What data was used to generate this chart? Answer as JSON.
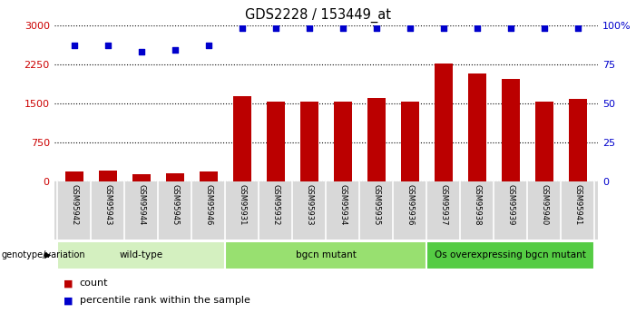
{
  "title": "GDS2228 / 153449_at",
  "samples": [
    "GSM95942",
    "GSM95943",
    "GSM95944",
    "GSM95945",
    "GSM95946",
    "GSM95931",
    "GSM95932",
    "GSM95933",
    "GSM95934",
    "GSM95935",
    "GSM95936",
    "GSM95937",
    "GSM95938",
    "GSM95939",
    "GSM95940",
    "GSM95941"
  ],
  "counts": [
    200,
    210,
    140,
    165,
    200,
    1630,
    1530,
    1530,
    1530,
    1595,
    1530,
    2270,
    2080,
    1960,
    1530,
    1590
  ],
  "percentile_ranks": [
    87,
    87,
    83,
    84,
    87,
    98,
    98,
    98,
    98,
    98,
    98,
    98,
    98,
    98,
    98,
    98
  ],
  "groups": [
    {
      "label": "wild-type",
      "start": 0,
      "end": 5,
      "color": "#d4f0c0"
    },
    {
      "label": "bgcn mutant",
      "start": 5,
      "end": 11,
      "color": "#98e070"
    },
    {
      "label": "Os overexpressing bgcn mutant",
      "start": 11,
      "end": 16,
      "color": "#55cc44"
    }
  ],
  "bar_color": "#bb0000",
  "dot_color": "#0000cc",
  "ylim_left": [
    0,
    3000
  ],
  "yticks_left": [
    0,
    750,
    1500,
    2250,
    3000
  ],
  "ylim_right": [
    0,
    100
  ],
  "yticks_right": [
    0,
    25,
    50,
    75,
    100
  ],
  "ylabel_left_color": "#cc0000",
  "ylabel_right_color": "#0000cc",
  "bg_color": "#d8d8d8",
  "legend_count_color": "#bb0000",
  "legend_pct_color": "#0000cc",
  "genotype_label": "genotype/variation"
}
